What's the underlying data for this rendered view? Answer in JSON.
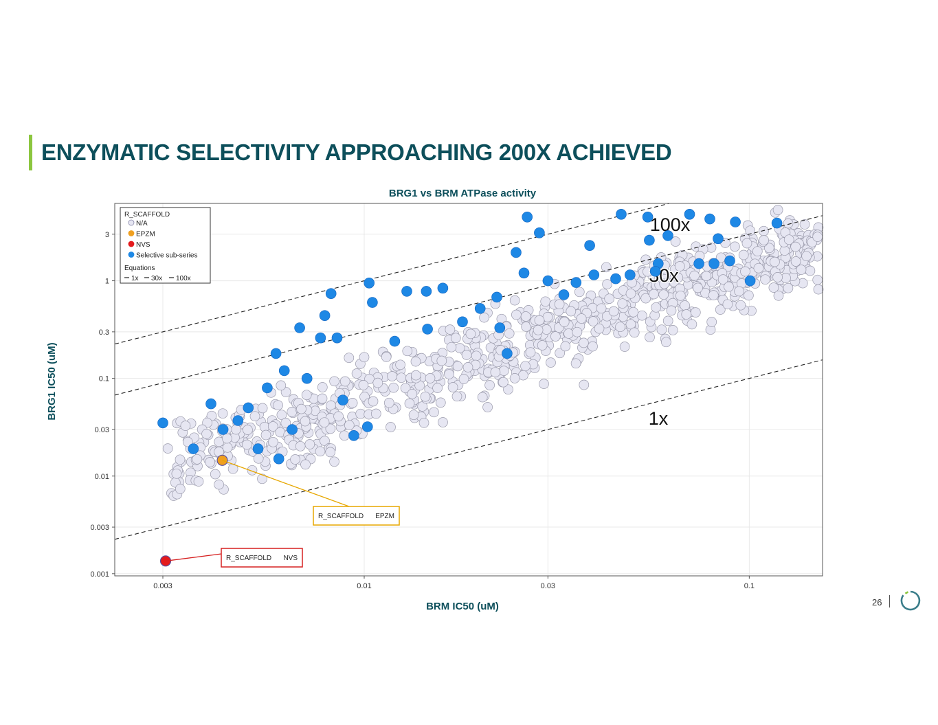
{
  "slide": {
    "title": "ENZYMATIC SELECTIVITY APPROACHING 200X ACHIEVED",
    "page_number": "26"
  },
  "colors": {
    "title": "#0d4f5b",
    "title_bar": "#8cc63f",
    "na": "#e6e6f2",
    "epzm": "#f0a020",
    "nvs": "#e41a1c",
    "selective": "#1e88e5",
    "callout_epzm": "#e7a700",
    "callout_nvs": "#d62020",
    "logo": "#3a7d8a"
  },
  "chart_data": {
    "type": "scatter",
    "title": "BRG1 vs BRM ATPase activity",
    "xlabel": "BRM IC50 (uM)",
    "ylabel": "BRG1 IC50 (uM)",
    "x_scale": "log",
    "y_scale": "log",
    "xlim": [
      0.00225,
      0.155
    ],
    "ylim": [
      0.00095,
      6.2
    ],
    "x_ticks": [
      0.003,
      0.01,
      0.03,
      0.1
    ],
    "x_tick_labels": [
      "0.003",
      "0.01",
      "0.03",
      "0.1"
    ],
    "y_ticks": [
      0.001,
      0.003,
      0.01,
      0.03,
      0.1,
      0.3,
      1,
      3
    ],
    "y_tick_labels": [
      "0.001",
      "0.003",
      "0.01",
      "0.03",
      "0.1",
      "0.3",
      "1",
      "3"
    ],
    "grid": true,
    "legend": {
      "position": "top-left",
      "title": "R_SCAFFOLD",
      "entries": [
        {
          "label": "N/A",
          "color": "#e6e6f2"
        },
        {
          "label": "EPZM",
          "color": "#f0a020"
        },
        {
          "label": "NVS",
          "color": "#e41a1c"
        },
        {
          "label": "Selective sub-series",
          "color": "#1e88e5"
        }
      ],
      "equations_title": "Equations",
      "equation_labels": [
        "1x",
        "30x",
        "100x"
      ]
    },
    "lines": [
      {
        "name": "1x",
        "label": "1x",
        "multiplier": 1
      },
      {
        "name": "30x",
        "label": "30x",
        "multiplier": 30
      },
      {
        "name": "100x",
        "label": "100x",
        "multiplier": 100
      }
    ],
    "annotations": [
      {
        "series": "EPZM",
        "scaffold_label": "R_SCAFFOLD",
        "value_label": "EPZM"
      },
      {
        "series": "NVS",
        "scaffold_label": "R_SCAFFOLD",
        "value_label": "NVS"
      }
    ],
    "series": [
      {
        "name": "EPZM",
        "points": [
          [
            0.00428,
            0.0145
          ]
        ]
      },
      {
        "name": "NVS",
        "points": [
          [
            0.00305,
            0.00135
          ]
        ]
      },
      {
        "name": "Selective sub-series",
        "points": [
          [
            0.003,
            0.035
          ],
          [
            0.004,
            0.055
          ],
          [
            0.0043,
            0.03
          ],
          [
            0.0036,
            0.019
          ],
          [
            0.0047,
            0.037
          ],
          [
            0.005,
            0.05
          ],
          [
            0.0053,
            0.019
          ],
          [
            0.0056,
            0.08
          ],
          [
            0.0059,
            0.18
          ],
          [
            0.0062,
            0.12
          ],
          [
            0.0065,
            0.03
          ],
          [
            0.006,
            0.015
          ],
          [
            0.0071,
            0.1
          ],
          [
            0.0068,
            0.33
          ],
          [
            0.0077,
            0.26
          ],
          [
            0.0079,
            0.44
          ],
          [
            0.0082,
            0.74
          ],
          [
            0.0085,
            0.26
          ],
          [
            0.0088,
            0.06
          ],
          [
            0.0094,
            0.026
          ],
          [
            0.0102,
            0.032
          ],
          [
            0.0103,
            0.95
          ],
          [
            0.0105,
            0.6
          ],
          [
            0.012,
            0.24
          ],
          [
            0.0129,
            0.78
          ],
          [
            0.0145,
            0.78
          ],
          [
            0.016,
            0.84
          ],
          [
            0.0146,
            0.32
          ],
          [
            0.018,
            0.38
          ],
          [
            0.02,
            0.52
          ],
          [
            0.0221,
            0.68
          ],
          [
            0.0225,
            0.33
          ],
          [
            0.0235,
            0.18
          ],
          [
            0.0248,
            1.95
          ],
          [
            0.026,
            1.2
          ],
          [
            0.0265,
            4.5
          ],
          [
            0.0285,
            3.1
          ],
          [
            0.03,
            1.0
          ],
          [
            0.033,
            0.72
          ],
          [
            0.0355,
            0.96
          ],
          [
            0.0385,
            2.3
          ],
          [
            0.0395,
            1.15
          ],
          [
            0.045,
            1.05
          ],
          [
            0.0465,
            4.8
          ],
          [
            0.049,
            1.15
          ],
          [
            0.0545,
            4.5
          ],
          [
            0.055,
            2.6
          ],
          [
            0.058,
            1.5
          ],
          [
            0.057,
            1.25
          ],
          [
            0.0615,
            2.9
          ],
          [
            0.07,
            4.8
          ],
          [
            0.074,
            1.5
          ],
          [
            0.079,
            4.3
          ],
          [
            0.083,
            2.7
          ],
          [
            0.081,
            1.5
          ],
          [
            0.089,
            1.6
          ],
          [
            0.092,
            4.0
          ],
          [
            0.1005,
            1.0
          ],
          [
            0.118,
            3.9
          ]
        ]
      }
    ]
  }
}
